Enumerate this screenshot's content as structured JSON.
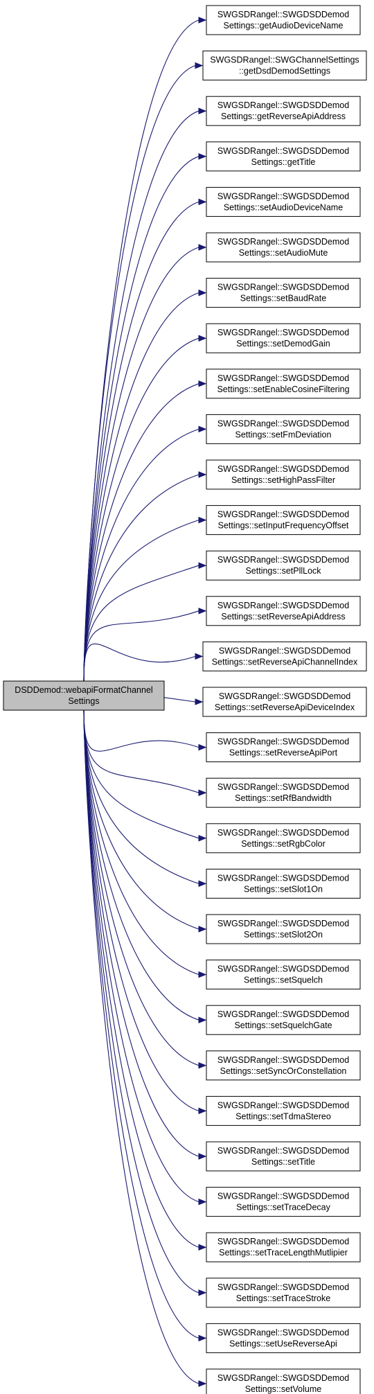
{
  "diagram": {
    "type": "call-graph",
    "edge_color": "#191970",
    "source_fill": "#bfbfbf",
    "source": {
      "line1": "DSDDemod::webapiFormatChannel",
      "line2": "Settings"
    },
    "targets": [
      {
        "line1": "SWGSDRangel::SWGDSDDemod",
        "line2": "Settings::getAudioDeviceName"
      },
      {
        "line1": "SWGSDRangel::SWGChannelSettings",
        "line2": "::getDsdDemodSettings"
      },
      {
        "line1": "SWGSDRangel::SWGDSDDemod",
        "line2": "Settings::getReverseApiAddress"
      },
      {
        "line1": "SWGSDRangel::SWGDSDDemod",
        "line2": "Settings::getTitle"
      },
      {
        "line1": "SWGSDRangel::SWGDSDDemod",
        "line2": "Settings::setAudioDeviceName"
      },
      {
        "line1": "SWGSDRangel::SWGDSDDemod",
        "line2": "Settings::setAudioMute"
      },
      {
        "line1": "SWGSDRangel::SWGDSDDemod",
        "line2": "Settings::setBaudRate"
      },
      {
        "line1": "SWGSDRangel::SWGDSDDemod",
        "line2": "Settings::setDemodGain"
      },
      {
        "line1": "SWGSDRangel::SWGDSDDemod",
        "line2": "Settings::setEnableCosineFiltering"
      },
      {
        "line1": "SWGSDRangel::SWGDSDDemod",
        "line2": "Settings::setFmDeviation"
      },
      {
        "line1": "SWGSDRangel::SWGDSDDemod",
        "line2": "Settings::setHighPassFilter"
      },
      {
        "line1": "SWGSDRangel::SWGDSDDemod",
        "line2": "Settings::setInputFrequencyOffset"
      },
      {
        "line1": "SWGSDRangel::SWGDSDDemod",
        "line2": "Settings::setPllLock"
      },
      {
        "line1": "SWGSDRangel::SWGDSDDemod",
        "line2": "Settings::setReverseApiAddress"
      },
      {
        "line1": "SWGSDRangel::SWGDSDDemod",
        "line2": "Settings::setReverseApiChannelIndex"
      },
      {
        "line1": "SWGSDRangel::SWGDSDDemod",
        "line2": "Settings::setReverseApiDeviceIndex"
      },
      {
        "line1": "SWGSDRangel::SWGDSDDemod",
        "line2": "Settings::setReverseApiPort"
      },
      {
        "line1": "SWGSDRangel::SWGDSDDemod",
        "line2": "Settings::setRfBandwidth"
      },
      {
        "line1": "SWGSDRangel::SWGDSDDemod",
        "line2": "Settings::setRgbColor"
      },
      {
        "line1": "SWGSDRangel::SWGDSDDemod",
        "line2": "Settings::setSlot1On"
      },
      {
        "line1": "SWGSDRangel::SWGDSDDemod",
        "line2": "Settings::setSlot2On"
      },
      {
        "line1": "SWGSDRangel::SWGDSDDemod",
        "line2": "Settings::setSquelch"
      },
      {
        "line1": "SWGSDRangel::SWGDSDDemod",
        "line2": "Settings::setSquelchGate"
      },
      {
        "line1": "SWGSDRangel::SWGDSDDemod",
        "line2": "Settings::setSyncOrConstellation"
      },
      {
        "line1": "SWGSDRangel::SWGDSDDemod",
        "line2": "Settings::setTdmaStereo"
      },
      {
        "line1": "SWGSDRangel::SWGDSDDemod",
        "line2": "Settings::setTitle"
      },
      {
        "line1": "SWGSDRangel::SWGDSDDemod",
        "line2": "Settings::setTraceDecay"
      },
      {
        "line1": "SWGSDRangel::SWGDSDDemod",
        "line2": "Settings::setTraceLengthMutlipier"
      },
      {
        "line1": "SWGSDRangel::SWGDSDDemod",
        "line2": "Settings::setTraceStroke"
      },
      {
        "line1": "SWGSDRangel::SWGDSDDemod",
        "line2": "Settings::setUseReverseApi"
      },
      {
        "line1": "SWGSDRangel::SWGDSDDemod",
        "line2": "Settings::setVolume"
      }
    ]
  }
}
